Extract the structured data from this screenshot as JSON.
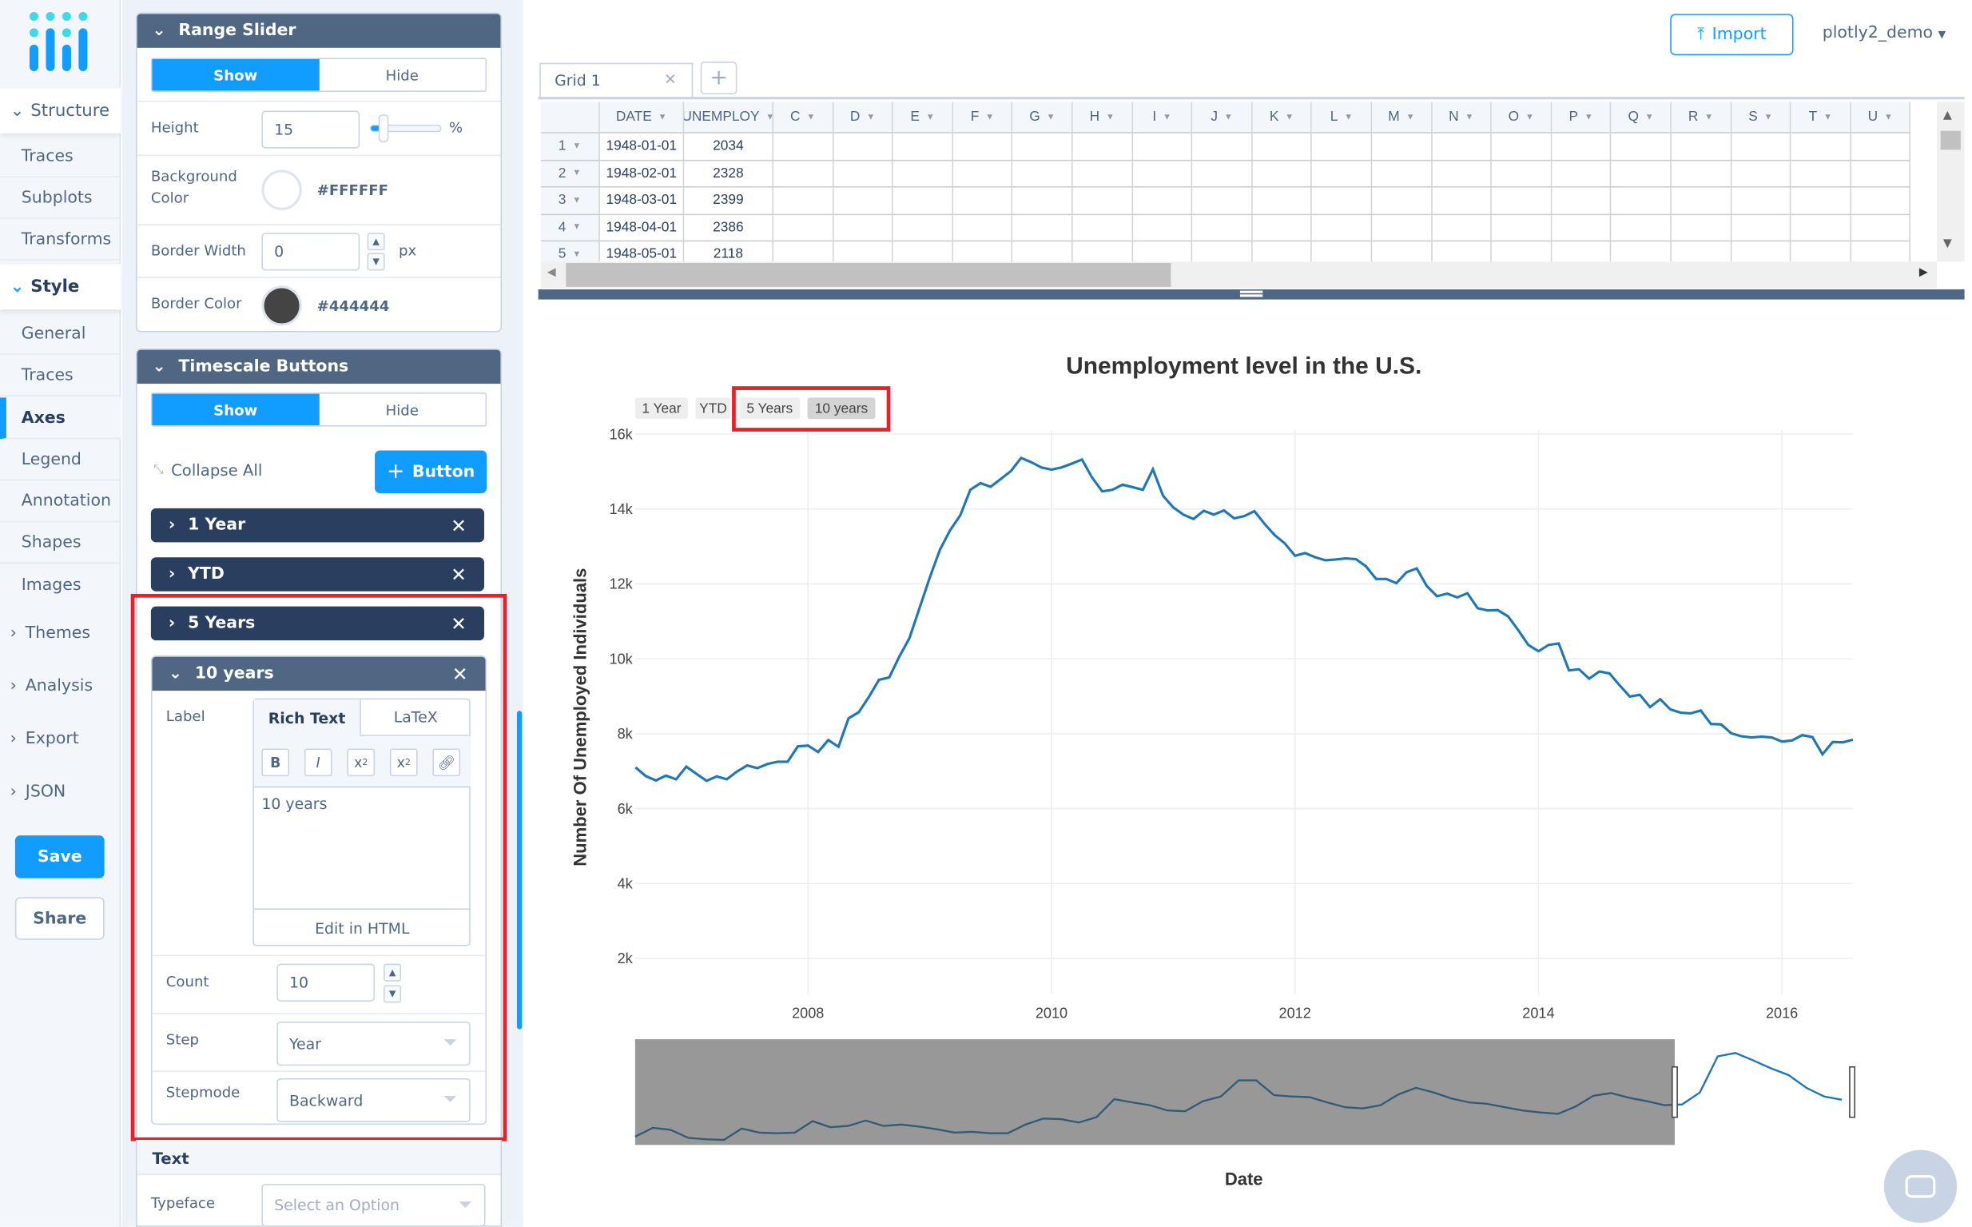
{
  "nav": {
    "structure": "Structure",
    "structure_items": [
      "Traces",
      "Subplots",
      "Transforms"
    ],
    "style": "Style",
    "style_items": [
      "General",
      "Traces",
      "Axes",
      "Legend",
      "Annotation",
      "Shapes",
      "Images"
    ],
    "collapsed": [
      "Themes",
      "Analysis",
      "Export",
      "JSON"
    ],
    "active": "Axes",
    "save": "Save",
    "share": "Share"
  },
  "range_slider": {
    "title": "Range Slider",
    "show": "Show",
    "hide": "Hide",
    "height_label": "Height",
    "height_value": "15",
    "height_unit": "%",
    "height_slider_fraction": 0.15,
    "bg_label_1": "Background",
    "bg_label_2": "Color",
    "bg_color": "#FFFFFF",
    "border_width_label": "Border Width",
    "border_width_value": "0",
    "border_width_unit": "px",
    "border_color_label": "Border Color",
    "border_color": "#444444"
  },
  "timescale": {
    "title": "Timescale Buttons",
    "show": "Show",
    "hide": "Hide",
    "collapse_all": "Collapse All",
    "add_button": "Button",
    "buttons": [
      "1 Year",
      "YTD",
      "5 Years",
      "10 years"
    ],
    "editor": {
      "label": "Label",
      "tab_rich": "Rich Text",
      "tab_latex": "LaTeX",
      "text": "10 years",
      "edit_html": "Edit in HTML",
      "count_label": "Count",
      "count_value": "10",
      "step_label": "Step",
      "step_value": "Year",
      "stepmode_label": "Stepmode",
      "stepmode_value": "Backward"
    }
  },
  "text_section": {
    "title": "Text",
    "typeface_label": "Typeface",
    "typeface_placeholder": "Select an Option"
  },
  "header": {
    "import": "Import",
    "user": "plotly2_demo"
  },
  "grid": {
    "tab": "Grid 1",
    "columns": [
      "DATE",
      "UNEMPLOY",
      "C",
      "D",
      "E",
      "F",
      "G",
      "H",
      "I",
      "J",
      "K",
      "L",
      "M",
      "N",
      "O",
      "P",
      "Q",
      "R",
      "S",
      "T",
      "U"
    ],
    "rows": [
      [
        "1",
        "1948-01-01",
        "2034"
      ],
      [
        "2",
        "1948-02-01",
        "2328"
      ],
      [
        "3",
        "1948-03-01",
        "2399"
      ],
      [
        "4",
        "1948-04-01",
        "2386"
      ],
      [
        "5",
        "1948-05-01",
        "2118"
      ]
    ]
  },
  "chart_data": {
    "type": "line",
    "title": "Unemployment level in the U.S.",
    "xlabel": "Date",
    "ylabel": "Number Of Unemployed Individuals",
    "x_start": "2006-08",
    "x_frequency": "monthly",
    "xlim": [
      2006.58,
      2016.58
    ],
    "ylim": [
      1050,
      16100
    ],
    "xticks": [
      "2008",
      "2010",
      "2012",
      "2014",
      "2016"
    ],
    "yticks": [
      "2k",
      "4k",
      "6k",
      "8k",
      "10k",
      "12k",
      "14k",
      "16k"
    ],
    "grid": true,
    "line_color": "#1f77b4",
    "range_selector_buttons": [
      "1 Year",
      "YTD",
      "5 Years",
      "10 years"
    ],
    "active_button": "10 years",
    "values": [
      7100,
      6870,
      6750,
      6880,
      6780,
      7120,
      6930,
      6740,
      6860,
      6780,
      6990,
      7150,
      7080,
      7190,
      7250,
      7250,
      7660,
      7680,
      7510,
      7830,
      7650,
      8410,
      8570,
      8980,
      9440,
      9500,
      10060,
      10550,
      11360,
      12170,
      12910,
      13430,
      13830,
      14510,
      14690,
      14590,
      14800,
      15010,
      15360,
      15250,
      15110,
      15050,
      15110,
      15210,
      15320,
      14840,
      14470,
      14510,
      14650,
      14580,
      14510,
      15060,
      14350,
      14040,
      13850,
      13730,
      13950,
      13850,
      13960,
      13750,
      13810,
      13940,
      13600,
      13300,
      13080,
      12750,
      12820,
      12710,
      12630,
      12650,
      12680,
      12660,
      12470,
      12130,
      12130,
      12020,
      12310,
      12410,
      11940,
      11670,
      11740,
      11640,
      11750,
      11350,
      11290,
      11300,
      11130,
      10770,
      10370,
      10200,
      10370,
      10410,
      9690,
      9720,
      9470,
      9660,
      9610,
      9290,
      8990,
      9040,
      8710,
      8920,
      8650,
      8560,
      8540,
      8620,
      8260,
      8250,
      8010,
      7930,
      7900,
      7920,
      7900,
      7790,
      7820,
      7960,
      7910,
      7450,
      7780,
      7770,
      7840
    ],
    "rangeslider": {
      "xlim": [
        1948,
        2016.6
      ],
      "selected": [
        2006.58,
        2016.58
      ],
      "yearly_values": [
        2300,
        3600,
        3300,
        2100,
        1900,
        1800,
        3500,
        2900,
        2800,
        2900,
        4600,
        3700,
        3900,
        4700,
        3900,
        4100,
        3800,
        3400,
        2900,
        3000,
        2800,
        2800,
        4100,
        5000,
        4900,
        4400,
        5200,
        7900,
        7400,
        7000,
        6200,
        6100,
        7600,
        8300,
        10700,
        10700,
        8500,
        8300,
        8200,
        7400,
        6700,
        6500,
        7000,
        8600,
        9600,
        8900,
        8000,
        7400,
        7200,
        6700,
        6200,
        5900,
        5700,
        6800,
        8400,
        8800,
        8100,
        7600,
        7000,
        7100,
        8900,
        14300,
        14800,
        13700,
        12500,
        11500,
        9600,
        8300,
        7800
      ]
    }
  }
}
